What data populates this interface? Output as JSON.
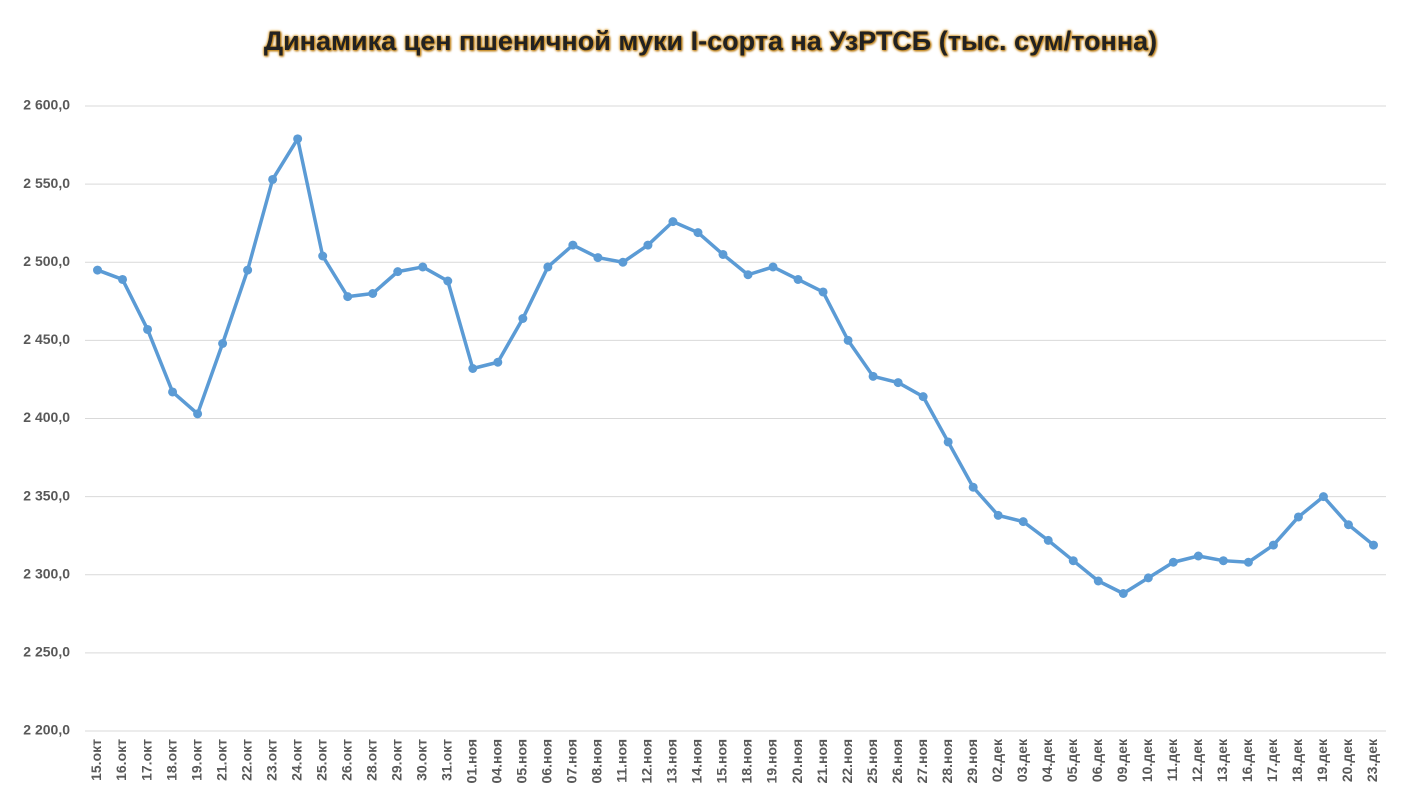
{
  "chart_data": {
    "type": "line",
    "title": "Динамика цен пшеничной муки I-сорта на УзРТСБ (тыс. сум/тонна)",
    "categories": [
      "15.окт",
      "16.окт",
      "17.окт",
      "18.окт",
      "19.окт",
      "21.окт",
      "22.окт",
      "23.окт",
      "24.окт",
      "25.окт",
      "26.окт",
      "28.окт",
      "29.окт",
      "30.окт",
      "31.окт",
      "01.ноя",
      "04.ноя",
      "05.ноя",
      "06.ноя",
      "07.ноя",
      "08.ноя",
      "11.ноя",
      "12.ноя",
      "13.ноя",
      "14.ноя",
      "15.ноя",
      "18.ноя",
      "19.ноя",
      "20.ноя",
      "21.ноя",
      "22.ноя",
      "25.ноя",
      "26.ноя",
      "27.ноя",
      "28.ноя",
      "29.ноя",
      "02.дек",
      "03.дек",
      "04.дек",
      "05.дек",
      "06.дек",
      "09.дек",
      "10.дек",
      "11.дек",
      "12.дек",
      "13.дек",
      "16.дек",
      "17.дек",
      "18.дек",
      "19.дек",
      "20.дек",
      "23.дек"
    ],
    "values": [
      2495,
      2489,
      2457,
      2417,
      2403,
      2448,
      2495,
      2553,
      2579,
      2504,
      2478,
      2480,
      2494,
      2497,
      2488,
      2432,
      2436,
      2464,
      2497,
      2511,
      2503,
      2500,
      2511,
      2526,
      2519,
      2505,
      2492,
      2497,
      2489,
      2481,
      2450,
      2427,
      2423,
      2414,
      2385,
      2356,
      2338,
      2334,
      2322,
      2309,
      2296,
      2288,
      2298,
      2308,
      2312,
      2309,
      2308,
      2319,
      2337,
      2350,
      2332,
      2319
    ],
    "color": "#5b9bd5",
    "ylim": [
      2200,
      2600
    ],
    "yticks": [
      {
        "value": 2200,
        "label": "2 200,0"
      },
      {
        "value": 2250,
        "label": "2 250,0"
      },
      {
        "value": 2300,
        "label": "2 300,0"
      },
      {
        "value": 2350,
        "label": "2 350,0"
      },
      {
        "value": 2400,
        "label": "2 400,0"
      },
      {
        "value": 2450,
        "label": "2 450,0"
      },
      {
        "value": 2500,
        "label": "2 500,0"
      },
      {
        "value": 2550,
        "label": "2 550,0"
      },
      {
        "value": 2600,
        "label": "2 600,0"
      }
    ],
    "grid": true
  }
}
